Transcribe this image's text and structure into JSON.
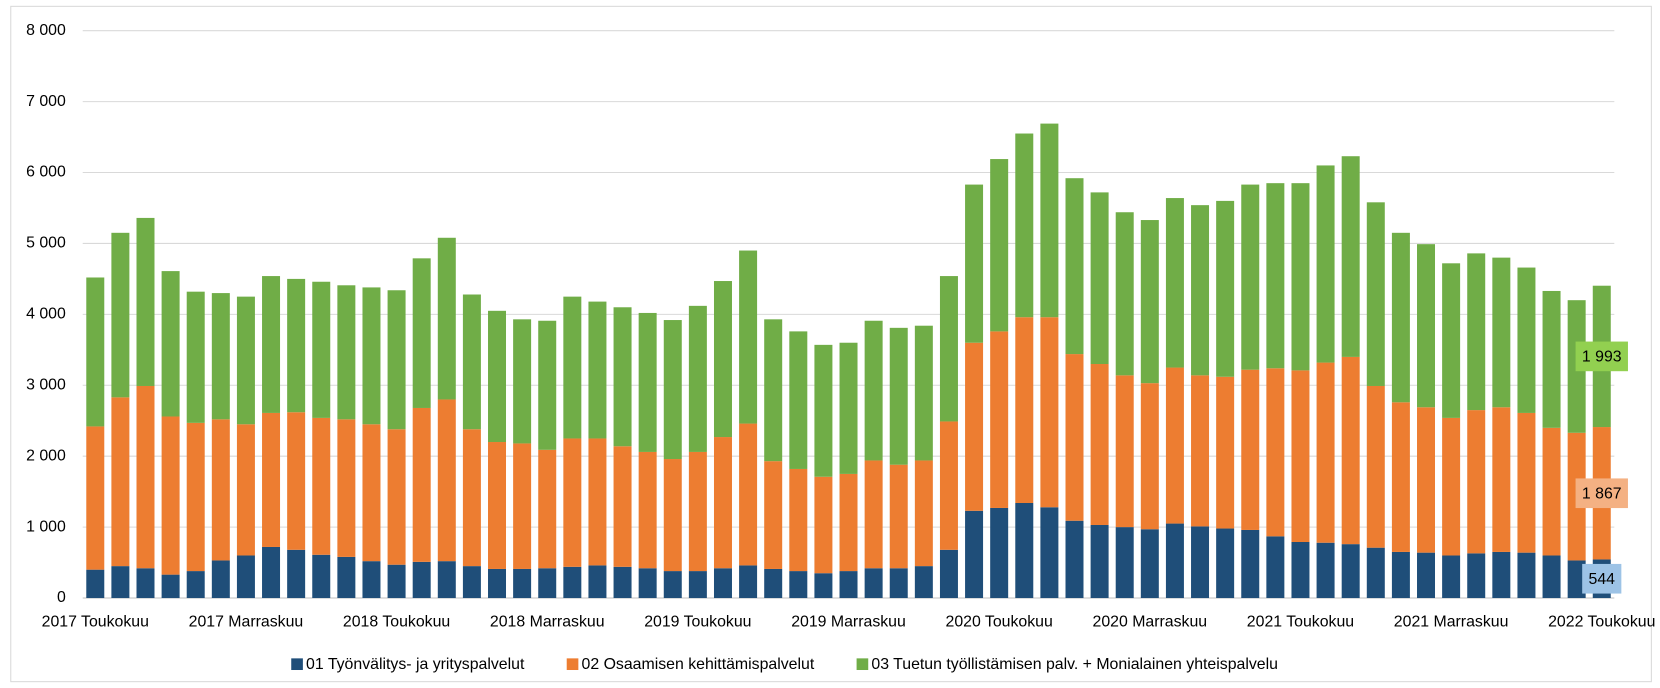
{
  "chart_data": {
    "type": "stacked_bar",
    "categories": [
      "2017 Toukokuu",
      null,
      null,
      null,
      null,
      null,
      "2017 Marraskuu",
      null,
      null,
      null,
      null,
      null,
      "2018 Toukokuu",
      null,
      null,
      null,
      null,
      null,
      "2018 Marraskuu",
      null,
      null,
      null,
      null,
      null,
      "2019 Toukokuu",
      null,
      null,
      null,
      null,
      null,
      "2019 Marraskuu",
      null,
      null,
      null,
      null,
      null,
      "2020 Toukokuu",
      null,
      null,
      null,
      null,
      null,
      "2020 Marraskuu",
      null,
      null,
      null,
      null,
      null,
      "2021 Toukokuu",
      null,
      null,
      null,
      null,
      null,
      "2021 Marraskuu",
      null,
      null,
      null,
      null,
      null,
      "2022 Toukokuu"
    ],
    "series": [
      {
        "name": "01 Työnvälitys- ja yrityspalvelut",
        "color": "#1f4e79",
        "values": [
          400,
          450,
          420,
          330,
          380,
          530,
          600,
          720,
          680,
          610,
          580,
          520,
          470,
          510,
          520,
          450,
          410,
          410,
          420,
          440,
          460,
          440,
          420,
          380,
          380,
          420,
          460,
          410,
          380,
          350,
          380,
          420,
          420,
          450,
          680,
          1230,
          1270,
          1340,
          1280,
          1090,
          1030,
          1000,
          970,
          1050,
          1010,
          980,
          960,
          870,
          790,
          780,
          760,
          710,
          650,
          640,
          600,
          630,
          650,
          640,
          600,
          530,
          544
        ],
        "label_color": "#9dc3e6"
      },
      {
        "name": "02 Osaamisen kehittämispalvelut",
        "color": "#ed7d31",
        "values": [
          2020,
          2380,
          2570,
          2230,
          2090,
          1990,
          1850,
          1890,
          1940,
          1930,
          1940,
          1930,
          1910,
          2170,
          2280,
          1930,
          1790,
          1770,
          1670,
          1810,
          1790,
          1700,
          1640,
          1580,
          1680,
          1850,
          2000,
          1520,
          1440,
          1360,
          1370,
          1520,
          1460,
          1490,
          1810,
          2370,
          2490,
          2620,
          2680,
          2350,
          2270,
          2140,
          2060,
          2200,
          2130,
          2140,
          2260,
          2370,
          2420,
          2540,
          2640,
          2280,
          2110,
          2050,
          1940,
          2020,
          2040,
          1970,
          1800,
          1800,
          1867
        ],
        "value_labels": [
          null,
          null,
          null,
          null,
          null,
          null,
          null,
          null,
          null,
          null,
          null,
          null,
          null,
          null,
          null,
          null,
          null,
          null,
          null,
          null,
          null,
          null,
          null,
          null,
          null,
          null,
          null,
          null,
          null,
          null,
          null,
          null,
          null,
          null,
          null,
          null,
          null,
          null,
          null,
          null,
          null,
          null,
          null,
          null,
          null,
          null,
          null,
          null,
          null,
          null,
          null,
          null,
          null,
          null,
          null,
          null,
          null,
          null,
          null,
          null,
          "1 867"
        ],
        "label_color": "#f4b183"
      },
      {
        "name": "03 Tuetun työllistämisen palv. + Monialainen yhteispalvelu",
        "color": "#70ad47",
        "values": [
          2100,
          2320,
          2370,
          2050,
          1850,
          1780,
          1800,
          1930,
          1880,
          1920,
          1890,
          1930,
          1960,
          2110,
          2280,
          1900,
          1850,
          1750,
          1820,
          2000,
          1930,
          1960,
          1960,
          1960,
          2060,
          2200,
          2440,
          2000,
          1940,
          1860,
          1850,
          1970,
          1930,
          1900,
          2050,
          2230,
          2430,
          2590,
          2730,
          2480,
          2420,
          2300,
          2300,
          2390,
          2400,
          2480,
          2610,
          2610,
          2640,
          2780,
          2830,
          2590,
          2390,
          2300,
          2180,
          2210,
          2110,
          2050,
          1930,
          1870,
          1993
        ],
        "value_labels": [
          null,
          null,
          null,
          null,
          null,
          null,
          null,
          null,
          null,
          null,
          null,
          null,
          null,
          null,
          null,
          null,
          null,
          null,
          null,
          null,
          null,
          null,
          null,
          null,
          null,
          null,
          null,
          null,
          null,
          null,
          null,
          null,
          null,
          null,
          null,
          null,
          null,
          null,
          null,
          null,
          null,
          null,
          null,
          null,
          null,
          null,
          null,
          null,
          null,
          null,
          null,
          null,
          null,
          null,
          null,
          null,
          null,
          null,
          null,
          null,
          "1 993"
        ],
        "label_color": "#92d050"
      }
    ],
    "ylim": [
      0,
      8000
    ],
    "yticks": [
      0,
      {
        "value": 1000,
        "label": "1 000"
      },
      {
        "value": 2000,
        "label": "2 000"
      },
      {
        "value": 3000,
        "label": "3 000"
      },
      {
        "value": 4000,
        "label": "4 000"
      },
      {
        "value": 5000,
        "label": "5 000"
      },
      {
        "value": 6000,
        "label": "6 000"
      },
      {
        "value": 7000,
        "label": "7 000"
      },
      {
        "value": 8000,
        "label": "8 000"
      }
    ],
    "grid": true,
    "legend": "bottom"
  }
}
